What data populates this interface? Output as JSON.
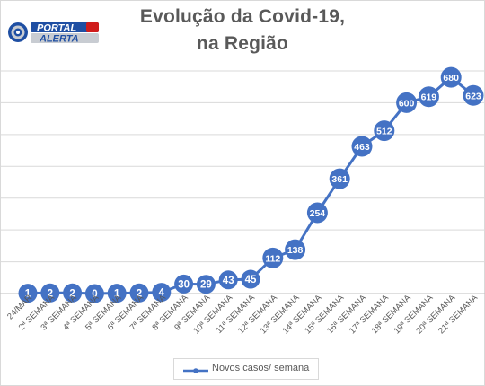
{
  "logo": {
    "line1": "PORTAL",
    "line2": "ALERTA",
    "colors": {
      "blue": "#1f4fa3",
      "red": "#d01c1c",
      "silver": "#c8ccd2"
    }
  },
  "legend": {
    "label": "Novos casos/ semana"
  },
  "colors": {
    "series": "#4472c4",
    "grid": "#d9d9d9",
    "text": "#595959"
  },
  "chart_data": {
    "type": "line",
    "title": "Evolução da Covid-19,\nna Região",
    "title_lines": [
      "Evolução da Covid-19,",
      "na Região"
    ],
    "categories": [
      "24/MAR",
      "2ª SEMANA",
      "3ª SEMANA",
      "4ª SEMANA",
      "5ª SEMANA",
      "6ª SEMANA",
      "7ª SEMANA",
      "8ª SEMANA",
      "9ª SEMANA",
      "10ª SEMANA",
      "11ª SEMANA",
      "12ª SEMANA",
      "13ª SEMANA",
      "14ª SEMANA",
      "15ª SEMANA",
      "16ª SEMANA",
      "17ª SEMANA",
      "18ª SEMANA",
      "19ª SEMANA",
      "20ª SEMANA",
      "21ª SEMANA"
    ],
    "series": [
      {
        "name": "Novos casos/ semana",
        "values": [
          1,
          2,
          2,
          0,
          1,
          2,
          4,
          30,
          29,
          43,
          45,
          112,
          138,
          254,
          361,
          463,
          512,
          600,
          619,
          680,
          623
        ]
      }
    ],
    "ylim": [
      0,
      700
    ],
    "y_gridlines": [
      0,
      100,
      200,
      300,
      400,
      500,
      600,
      700
    ],
    "grid": true,
    "legend_position": "bottom",
    "data_labels": true
  }
}
